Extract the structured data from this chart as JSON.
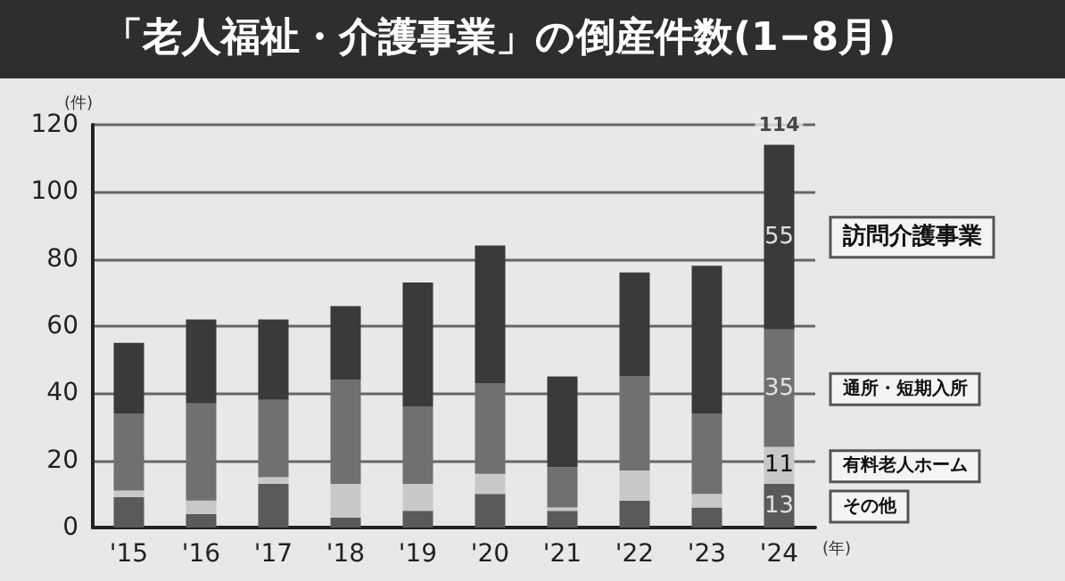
{
  "chart_data": {
    "type": "bar",
    "title": "「老人福祉・介護事業」の倒産件数(1−8月)",
    "ylabel": "(件)",
    "xlabel": "(年)",
    "categories": [
      "'15",
      "'16",
      "'17",
      "'18",
      "'19",
      "'20",
      "'21",
      "'22",
      "'23",
      "'24"
    ],
    "stacked": true,
    "series": [
      {
        "name": "その他",
        "color": "#5a5a5a",
        "values": [
          9,
          4,
          13,
          3,
          5,
          10,
          5,
          8,
          6,
          13
        ],
        "value_labels": [
          null,
          null,
          null,
          null,
          null,
          null,
          null,
          null,
          null,
          "13"
        ]
      },
      {
        "name": "有料老人ホーム",
        "color": "#c8c8c8",
        "values": [
          2,
          4,
          2,
          10,
          8,
          6,
          1,
          9,
          4,
          11
        ],
        "value_labels": [
          null,
          null,
          null,
          null,
          null,
          null,
          null,
          null,
          null,
          "11"
        ]
      },
      {
        "name": "通所・短期入所",
        "color": "#707070",
        "values": [
          23,
          29,
          23,
          31,
          23,
          27,
          12,
          28,
          24,
          35
        ],
        "value_labels": [
          null,
          null,
          null,
          null,
          null,
          null,
          null,
          null,
          null,
          "35"
        ]
      },
      {
        "name": "訪問介護事業",
        "color": "#3a3a3a",
        "values": [
          21,
          25,
          24,
          22,
          37,
          41,
          27,
          31,
          44,
          55
        ],
        "value_labels": [
          null,
          null,
          null,
          null,
          null,
          null,
          null,
          null,
          null,
          "55"
        ]
      }
    ],
    "totals": [
      null,
      null,
      null,
      null,
      null,
      null,
      null,
      null,
      null,
      "114"
    ],
    "ylim": [
      0,
      120
    ],
    "yticks": [
      0,
      20,
      40,
      60,
      80,
      100,
      120
    ],
    "grid": "y",
    "legend": "right"
  }
}
